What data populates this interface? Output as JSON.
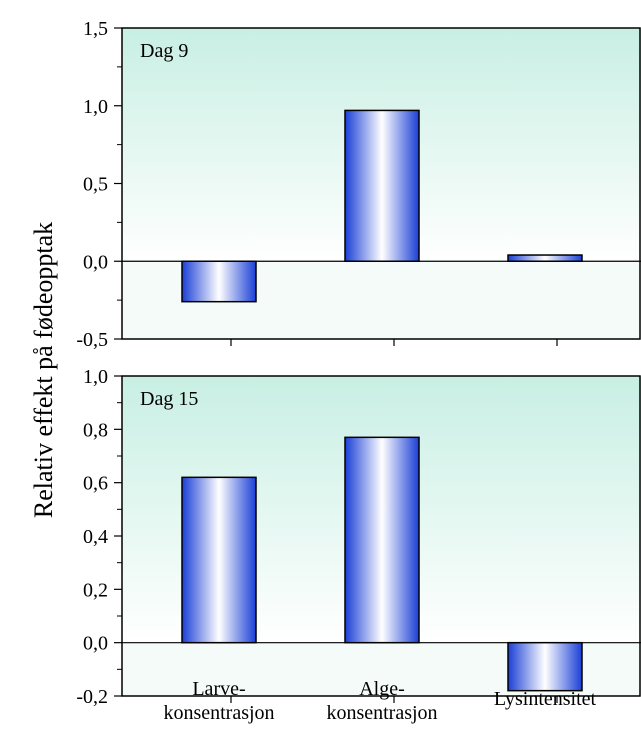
{
  "chart_data": [
    {
      "type": "bar",
      "panel_label": "Dag 9",
      "categories": [
        "Larve-\nkonsentrasjon",
        "Alge-\nkonsentrasjon",
        "Lysintensitet"
      ],
      "values": [
        -0.26,
        0.97,
        0.04
      ],
      "ylim": [
        -0.5,
        1.5
      ],
      "yticks": [
        "-0,5",
        "0,0",
        "0,5",
        "1,0",
        "1,5"
      ],
      "ytick_values": [
        -0.5,
        0.0,
        0.5,
        1.0,
        1.5
      ],
      "grid": false
    },
    {
      "type": "bar",
      "panel_label": "Dag 15",
      "categories": [
        "Larve-\nkonsentrasjon",
        "Alge-\nkonsentrasjon",
        "Lysintensitet"
      ],
      "values": [
        0.62,
        0.77,
        -0.18
      ],
      "ylim": [
        -0.2,
        1.0
      ],
      "yticks": [
        "-0,2",
        "0,0",
        "0,2",
        "0,4",
        "0,6",
        "0,8",
        "1,0"
      ],
      "ytick_values": [
        -0.2,
        0.0,
        0.2,
        0.4,
        0.6,
        0.8,
        1.0
      ],
      "grid": false
    }
  ],
  "ylabel": "Relativ effekt på fødeopptak",
  "xcategory_labels": [
    {
      "line1": "Larve-",
      "line2": "konsentrasjon"
    },
    {
      "line1": "Alge-",
      "line2": "konsentrasjon"
    },
    {
      "line1": "Lysintensitet",
      "line2": ""
    }
  ],
  "colors": {
    "bar_edge": "#1a3fd6",
    "bar_center": "#ffffff",
    "panel_bg_top": "#c8efe3",
    "panel_bg_bottom": "#ffffff",
    "axis": "#000000"
  }
}
